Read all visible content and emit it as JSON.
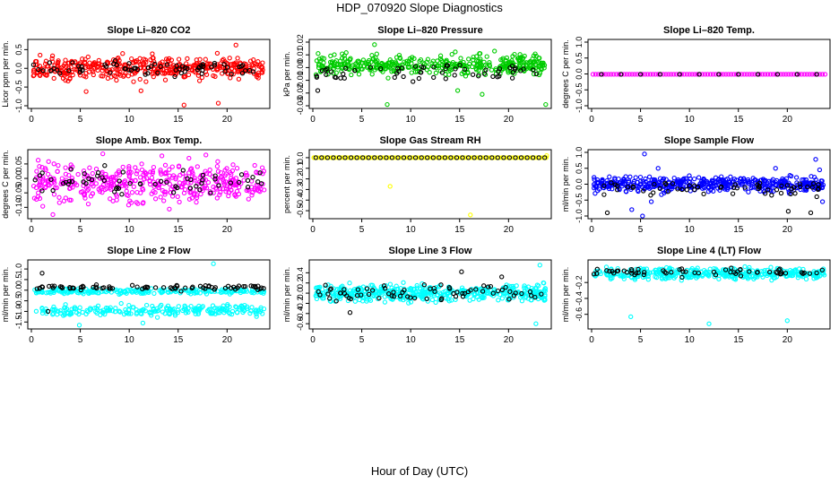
{
  "page": {
    "title": "HDP_070920  Slope Diagnostics",
    "xlabel": "Hour of Day (UTC)"
  },
  "chart_data": [
    {
      "type": "scatter",
      "title": "Slope Li–820 CO2",
      "ylabel": "Licor ppm per min.",
      "color": "#ff0000",
      "xlim": [
        0,
        24
      ],
      "xticks": [
        0,
        5,
        10,
        15,
        20
      ],
      "xtick_labels": [
        "0",
        "5",
        "10",
        "15",
        "20"
      ],
      "ylim": [
        -1.0,
        0.7
      ],
      "yticks": [
        -1.0,
        -0.5,
        0.0,
        0.5
      ],
      "ytick_labels": [
        "-1.0",
        "-0.5",
        "0.0",
        "0.5"
      ],
      "series": [
        {
          "name": "slopes",
          "color": "#ff0000",
          "n": 420,
          "center": 0.0,
          "spread": 0.2,
          "outliers": [
            [
              15.6,
              -0.98
            ],
            [
              19.1,
              -0.93
            ],
            [
              20.9,
              0.62
            ],
            [
              5.6,
              -0.62
            ],
            [
              11.2,
              -0.6
            ]
          ]
        },
        {
          "name": "reference",
          "color": "#000000",
          "n": 70,
          "center": 0.0,
          "spread": 0.12,
          "outliers": []
        }
      ]
    },
    {
      "type": "scatter",
      "title": "Slope Li–820 Pressure",
      "ylabel": "kPa per min.",
      "color": "#00cc00",
      "xlim": [
        0,
        24
      ],
      "xticks": [
        0,
        5,
        10,
        15,
        20
      ],
      "xtick_labels": [
        "0",
        "5",
        "10",
        "15",
        "20"
      ],
      "ylim": [
        -0.03,
        0.02
      ],
      "yticks": [
        -0.03,
        -0.02,
        -0.01,
        0.0,
        0.01,
        0.02
      ],
      "ytick_labels": [
        "-0.03",
        "-0.02",
        "-0.01",
        "0.00",
        "0.01",
        "0.02"
      ],
      "series": [
        {
          "name": "slopes",
          "color": "#00cc00",
          "n": 420,
          "center": 0.002,
          "spread": 0.005,
          "outliers": [
            [
              17.3,
              -0.021
            ],
            [
              6.3,
              0.018
            ],
            [
              14.8,
              -0.018
            ],
            [
              23.8,
              -0.029
            ],
            [
              7.6,
              -0.029
            ]
          ]
        },
        {
          "name": "reference",
          "color": "#000000",
          "n": 60,
          "center": -0.004,
          "spread": 0.004,
          "outliers": [
            [
              0.5,
              -0.018
            ]
          ]
        }
      ]
    },
    {
      "type": "scatter",
      "title": "Slope Li–820 Temp.",
      "ylabel": "degrees C per min.",
      "color": "#ff00ff",
      "xlim": [
        0,
        24
      ],
      "xticks": [
        0,
        5,
        10,
        15,
        20
      ],
      "xtick_labels": [
        "0",
        "5",
        "10",
        "15",
        "20"
      ],
      "ylim": [
        -1.0,
        1.0
      ],
      "yticks": [
        -1.0,
        -0.5,
        0.0,
        0.5,
        1.0
      ],
      "ytick_labels": [
        "-1.0",
        "-0.5",
        "0.0",
        "0.5",
        "1.0"
      ],
      "series": [
        {
          "name": "slopes",
          "color": "#ff00ff",
          "n": 90,
          "center": -0.01,
          "spread": 0.0,
          "outliers": []
        },
        {
          "name": "reference",
          "color": "#000000",
          "n": 12,
          "center": -0.01,
          "spread": 0.0,
          "outliers": []
        }
      ]
    },
    {
      "type": "scatter",
      "title": "Slope Amb. Box Temp.",
      "ylabel": "degrees C per min.",
      "color": "#ff00ff",
      "xlim": [
        0,
        24
      ],
      "xticks": [
        0,
        5,
        10,
        15,
        20
      ],
      "xtick_labels": [
        "0",
        "5",
        "10",
        "15",
        "20"
      ],
      "ylim": [
        -0.13,
        0.09
      ],
      "yticks": [
        -0.1,
        -0.05,
        0.0,
        0.05
      ],
      "ytick_labels": [
        "-0.10",
        "-0.05",
        "0.00",
        "0.05"
      ],
      "series": [
        {
          "name": "slopes",
          "color": "#ff00ff",
          "n": 420,
          "center": -0.015,
          "spread": 0.045,
          "outliers": [
            [
              7.3,
              0.085
            ],
            [
              16.1,
              0.07
            ],
            [
              2.2,
              -0.125
            ]
          ]
        },
        {
          "name": "reference",
          "color": "#000000",
          "n": 60,
          "center": -0.01,
          "spread": 0.03,
          "outliers": []
        }
      ]
    },
    {
      "type": "scatter",
      "title": "Slope Gas Stream RH",
      "ylabel": "percent per min.",
      "color": "#ffff00",
      "xlim": [
        0,
        24
      ],
      "xticks": [
        0,
        5,
        10,
        15,
        20
      ],
      "xtick_labels": [
        "0",
        "5",
        "10",
        "15",
        "20"
      ],
      "ylim": [
        -0.55,
        0.05
      ],
      "yticks": [
        -0.5,
        -0.4,
        -0.3,
        -0.2,
        -0.1,
        0.0
      ],
      "ytick_labels": [
        "-0.5",
        "-0.4",
        "-0.3",
        "-0.2",
        "-0.1",
        "0.0"
      ],
      "series": [
        {
          "name": "slopes",
          "color": "#ffff00",
          "n": 80,
          "center": 0.0,
          "spread": 0.0,
          "outliers": [
            [
              7.9,
              -0.27
            ],
            [
              16.1,
              -0.54
            ],
            [
              0.1,
              0.0
            ],
            [
              23.9,
              0.02
            ]
          ]
        },
        {
          "name": "reference",
          "color": "#000000",
          "n": 40,
          "center": 0.0,
          "spread": 0.0,
          "outliers": []
        }
      ]
    },
    {
      "type": "scatter",
      "title": "Slope Sample Flow",
      "ylabel": "ml/min per min.",
      "color": "#0000ff",
      "xlim": [
        0,
        24
      ],
      "xticks": [
        0,
        5,
        10,
        15,
        20
      ],
      "xtick_labels": [
        "0",
        "5",
        "10",
        "15",
        "20"
      ],
      "ylim": [
        -1.0,
        1.0
      ],
      "yticks": [
        -1.0,
        -0.5,
        0.0,
        0.5,
        1.0
      ],
      "ytick_labels": [
        "-1.0",
        "-0.5",
        "0.0",
        "0.5",
        "1.0"
      ],
      "series": [
        {
          "name": "slopes",
          "color": "#0000ff",
          "n": 460,
          "center": 0.0,
          "spread": 0.15,
          "outliers": [
            [
              5.4,
              0.95
            ],
            [
              5.2,
              -1.0
            ],
            [
              4.1,
              -0.8
            ],
            [
              6.1,
              -0.55
            ],
            [
              22.9,
              0.78
            ],
            [
              23.3,
              0.45
            ],
            [
              18.8,
              0.5
            ],
            [
              6.8,
              0.5
            ],
            [
              23.6,
              -0.55
            ]
          ]
        },
        {
          "name": "reference",
          "color": "#000000",
          "n": 60,
          "center": -0.1,
          "spread": 0.15,
          "outliers": [
            [
              1.6,
              -0.9
            ],
            [
              20.1,
              -0.85
            ],
            [
              22.4,
              -0.9
            ]
          ]
        }
      ]
    },
    {
      "type": "scatter",
      "title": "Slope Line 2 Flow",
      "ylabel": "ml/min per min.",
      "color": "#00ffff",
      "xlim": [
        0,
        24
      ],
      "xticks": [
        0,
        5,
        10,
        15,
        20
      ],
      "xtick_labels": [
        "0",
        "5",
        "10",
        "15",
        "20"
      ],
      "ylim": [
        -1.7,
        1.3
      ],
      "yticks": [
        -1.5,
        -1.0,
        -0.5,
        0.0,
        0.5,
        1.0
      ],
      "ytick_labels": [
        "-1.5",
        "-1.0",
        "-0.5",
        "0.0",
        "0.5",
        "1.0"
      ],
      "series": [
        {
          "name": "slopes band upper",
          "color": "#00ffff",
          "n": 230,
          "center": -0.05,
          "spread": 0.08,
          "outliers": [
            [
              18.6,
              1.25
            ],
            [
              11.4,
              -1.55
            ],
            [
              4.9,
              -1.65
            ]
          ]
        },
        {
          "name": "slopes band lower",
          "color": "#00ffff",
          "n": 230,
          "center": -0.95,
          "spread": 0.16,
          "outliers": []
        },
        {
          "name": "reference",
          "color": "#000000",
          "n": 80,
          "center": 0.12,
          "spread": 0.08,
          "outliers": [
            [
              1.1,
              0.8
            ],
            [
              1.7,
              -1.0
            ]
          ]
        }
      ]
    },
    {
      "type": "scatter",
      "title": "Slope Line 3 Flow",
      "ylabel": "ml/min per min.",
      "color": "#00ffff",
      "xlim": [
        0,
        24
      ],
      "xticks": [
        0,
        5,
        10,
        15,
        20
      ],
      "xtick_labels": [
        "0",
        "5",
        "10",
        "15",
        "20"
      ],
      "ylim": [
        -0.65,
        0.6
      ],
      "yticks": [
        -0.6,
        -0.4,
        -0.2,
        0.0,
        0.2,
        0.4
      ],
      "ytick_labels": [
        "-0.6",
        "-0.4",
        "-0.2",
        "0.0",
        "0.2",
        "0.4"
      ],
      "series": [
        {
          "name": "slopes",
          "color": "#00ffff",
          "n": 460,
          "center": 0.0,
          "spread": 0.11,
          "outliers": [
            [
              23.2,
              0.55
            ],
            [
              22.8,
              -0.6
            ]
          ]
        },
        {
          "name": "reference",
          "color": "#000000",
          "n": 70,
          "center": 0.0,
          "spread": 0.12,
          "outliers": [
            [
              15.2,
              0.42
            ],
            [
              3.8,
              -0.38
            ],
            [
              19.3,
              0.32
            ]
          ]
        }
      ]
    },
    {
      "type": "scatter",
      "title": "Slope Line 4 (LT) Flow",
      "ylabel": "ml/min per min.",
      "color": "#00ffff",
      "xlim": [
        0,
        24
      ],
      "xticks": [
        0,
        5,
        10,
        15,
        20
      ],
      "xtick_labels": [
        "0",
        "5",
        "10",
        "15",
        "20"
      ],
      "ylim": [
        -0.75,
        0.05
      ],
      "yticks": [
        -0.6,
        -0.4,
        -0.2
      ],
      "ytick_labels": [
        "-0.6",
        "-0.4",
        "-0.2"
      ],
      "series": [
        {
          "name": "slopes",
          "color": "#00ffff",
          "n": 380,
          "center": -0.09,
          "spread": 0.05,
          "outliers": [
            [
              4.0,
              -0.63
            ],
            [
              12.0,
              -0.72
            ],
            [
              20.0,
              -0.68
            ]
          ]
        },
        {
          "name": "reference",
          "color": "#000000",
          "n": 60,
          "center": -0.07,
          "spread": 0.035,
          "outliers": []
        }
      ]
    }
  ]
}
